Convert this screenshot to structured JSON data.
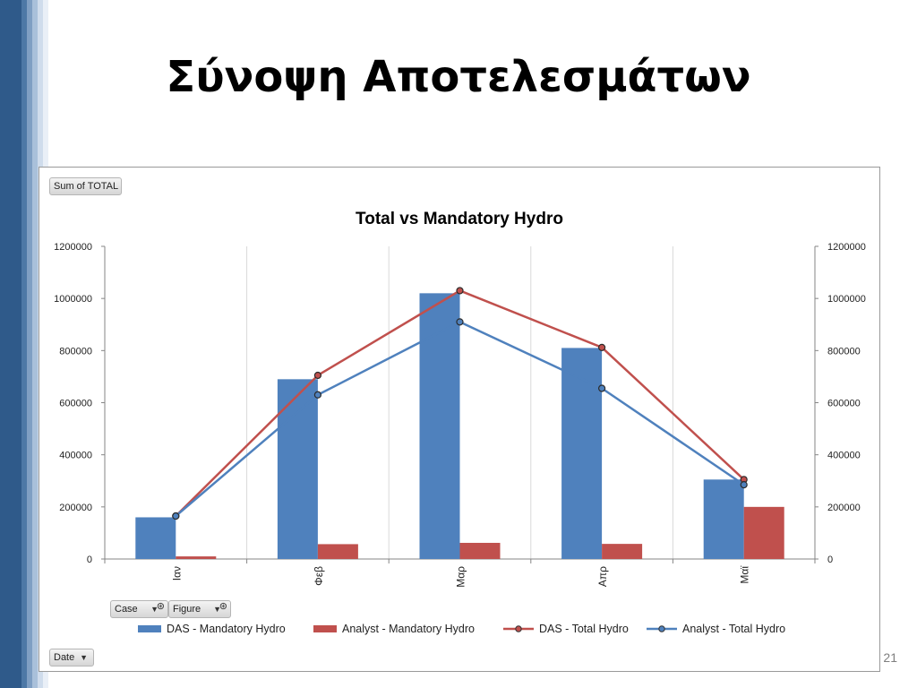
{
  "slide": {
    "title": "Σύνοψη Αποτελεσμάτων",
    "page_number": "21"
  },
  "pivot": {
    "value_field": "Sum of TOTAL",
    "filter_case": "Case",
    "filter_figure": "Figure",
    "axis_field": "Date"
  },
  "colors": {
    "das_bar": "#4f81bd",
    "analyst_bar": "#c0504d",
    "das_line": "#c0504d",
    "analyst_line": "#4f81bd"
  },
  "chart_data": {
    "type": "bar",
    "title": "Total vs Mandatory Hydro",
    "categories": [
      "Ιαν",
      "Φεβ",
      "Μαρ",
      "Απρ",
      "Μαϊ"
    ],
    "ylim": [
      0,
      1200000
    ],
    "y_ticks": [
      0,
      200000,
      400000,
      600000,
      800000,
      1000000,
      1200000
    ],
    "y_tick_labels": [
      "0",
      "200000",
      "400000",
      "600000",
      "800000",
      "1000000",
      "1200000"
    ],
    "secondary_axis": true,
    "grid": "vertical",
    "legend_position": "bottom",
    "series": [
      {
        "name": "DAS - Mandatory Hydro",
        "kind": "bar",
        "values": [
          160000,
          690000,
          1020000,
          810000,
          305000
        ]
      },
      {
        "name": "Analyst - Mandatory Hydro",
        "kind": "bar",
        "values": [
          10000,
          57000,
          62000,
          58000,
          200000
        ]
      },
      {
        "name": "DAS - Total Hydro",
        "kind": "line",
        "values": [
          165000,
          705000,
          1030000,
          812000,
          305000
        ]
      },
      {
        "name": "Analyst - Total Hydro",
        "kind": "line",
        "values": [
          165000,
          630000,
          910000,
          655000,
          285000
        ]
      }
    ]
  }
}
